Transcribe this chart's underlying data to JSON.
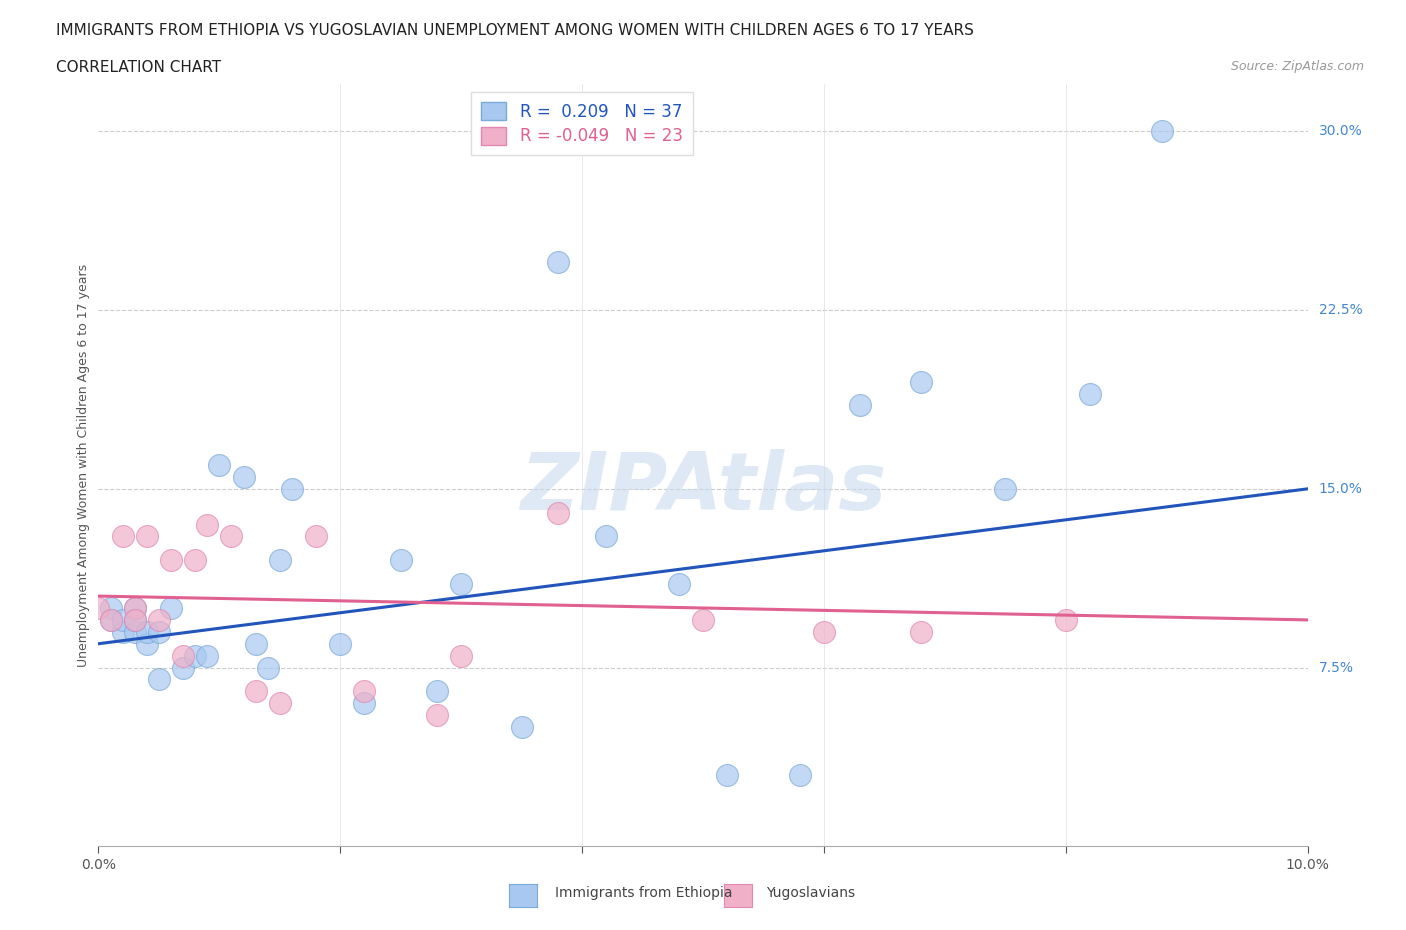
{
  "title_line1": "IMMIGRANTS FROM ETHIOPIA VS YUGOSLAVIAN UNEMPLOYMENT AMONG WOMEN WITH CHILDREN AGES 6 TO 17 YEARS",
  "title_line2": "CORRELATION CHART",
  "source": "Source: ZipAtlas.com",
  "ylabel": "Unemployment Among Women with Children Ages 6 to 17 years",
  "xlim": [
    0.0,
    0.1
  ],
  "ylim": [
    0.0,
    0.32
  ],
  "ytick_positions": [
    0.075,
    0.15,
    0.225,
    0.3
  ],
  "ytick_labels": [
    "7.5%",
    "15.0%",
    "22.5%",
    "30.0%"
  ],
  "r_ethiopia": 0.209,
  "n_ethiopia": 37,
  "r_yugoslav": -0.049,
  "n_yugoslav": 23,
  "blue_color": "#a8c8f0",
  "pink_color": "#f0b0c8",
  "blue_edge_color": "#7aaad8",
  "pink_edge_color": "#e088b0",
  "blue_line_color": "#2255bb",
  "pink_line_color": "#e06090",
  "legend_label_blue": "Immigrants from Ethiopia",
  "legend_label_pink": "Yugoslavians",
  "ethiopia_x": [
    0.001,
    0.001,
    0.002,
    0.002,
    0.003,
    0.003,
    0.003,
    0.004,
    0.004,
    0.005,
    0.005,
    0.006,
    0.007,
    0.008,
    0.009,
    0.01,
    0.012,
    0.013,
    0.014,
    0.015,
    0.016,
    0.02,
    0.022,
    0.025,
    0.028,
    0.03,
    0.035,
    0.038,
    0.042,
    0.048,
    0.052,
    0.058,
    0.063,
    0.068,
    0.075,
    0.082,
    0.088
  ],
  "ethiopia_y": [
    0.1,
    0.095,
    0.09,
    0.095,
    0.1,
    0.09,
    0.095,
    0.085,
    0.09,
    0.09,
    0.07,
    0.1,
    0.075,
    0.08,
    0.08,
    0.16,
    0.155,
    0.085,
    0.075,
    0.12,
    0.15,
    0.085,
    0.06,
    0.12,
    0.065,
    0.11,
    0.05,
    0.245,
    0.13,
    0.11,
    0.03,
    0.03,
    0.185,
    0.195,
    0.15,
    0.19,
    0.3
  ],
  "yugoslav_x": [
    0.0,
    0.001,
    0.002,
    0.003,
    0.003,
    0.004,
    0.005,
    0.006,
    0.007,
    0.008,
    0.009,
    0.011,
    0.013,
    0.015,
    0.018,
    0.022,
    0.028,
    0.03,
    0.038,
    0.05,
    0.06,
    0.068,
    0.08
  ],
  "yugoslav_y": [
    0.1,
    0.095,
    0.13,
    0.1,
    0.095,
    0.13,
    0.095,
    0.12,
    0.08,
    0.12,
    0.135,
    0.13,
    0.065,
    0.06,
    0.13,
    0.065,
    0.055,
    0.08,
    0.14,
    0.095,
    0.09,
    0.09,
    0.095
  ]
}
